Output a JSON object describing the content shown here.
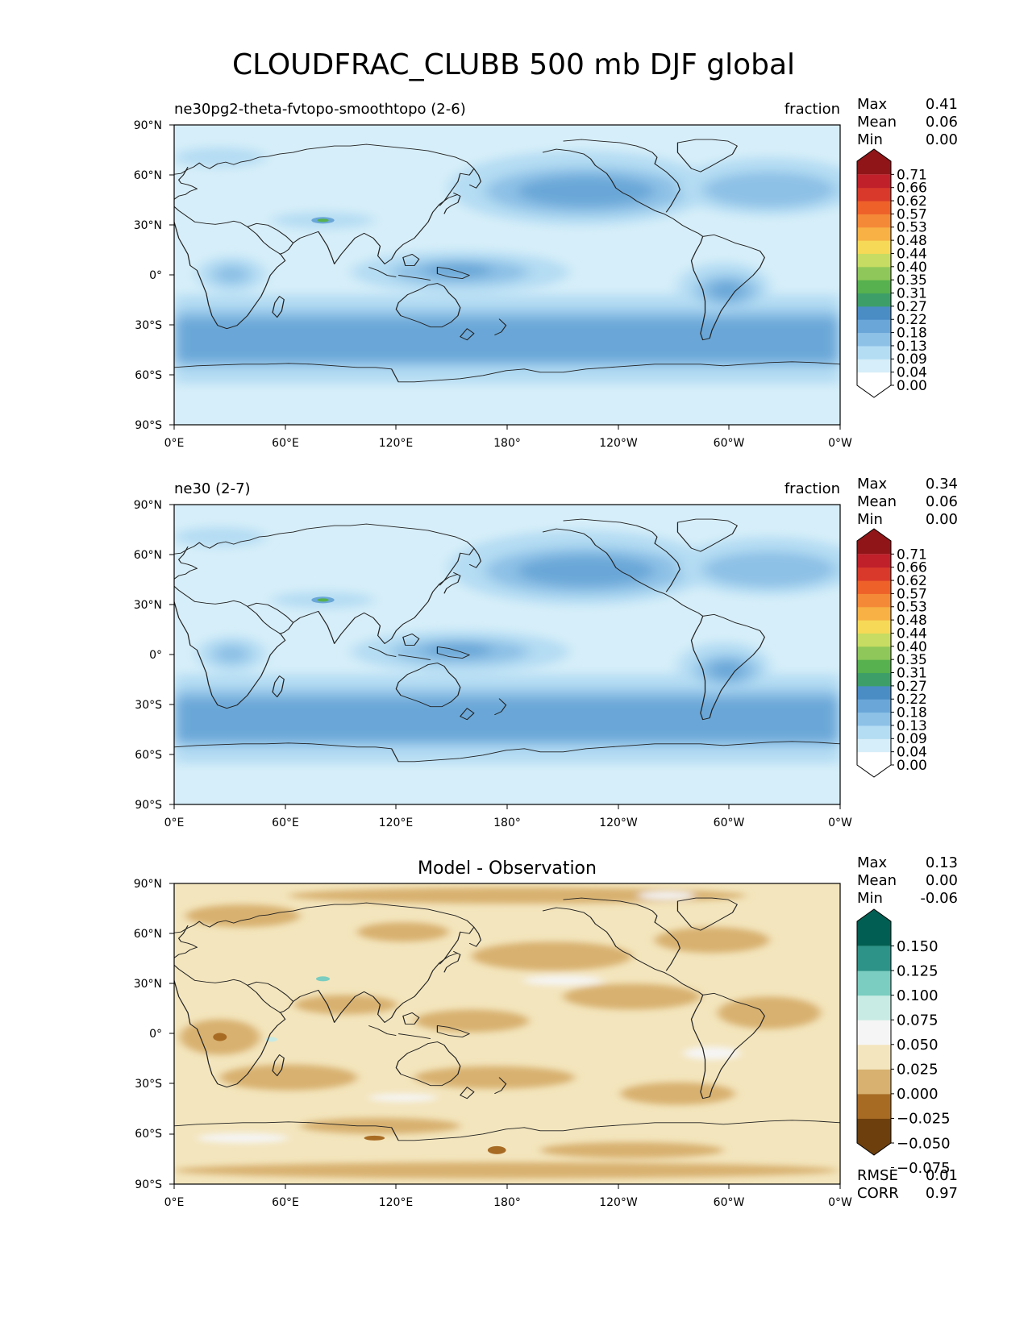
{
  "title": "CLOUDFRAC_CLUBB 500 mb DJF global",
  "lat_ticks": [
    "90°N",
    "60°N",
    "30°N",
    "0°",
    "30°S",
    "60°S",
    "90°S"
  ],
  "lon_ticks": [
    "0°E",
    "60°E",
    "120°E",
    "180°",
    "120°W",
    "60°W",
    "0°W"
  ],
  "chart_data": [
    {
      "type": "heatmap",
      "left_title": "ne30pg2-theta-fvtopo-smoothtopo (2-6)",
      "right_title": "fraction",
      "stats": {
        "labels": [
          "Max",
          "Mean",
          "Min"
        ],
        "values": [
          "0.41",
          "0.06",
          "0.00"
        ]
      },
      "colorbar": {
        "ticks": [
          "0.71",
          "0.66",
          "0.62",
          "0.57",
          "0.53",
          "0.48",
          "0.44",
          "0.40",
          "0.35",
          "0.31",
          "0.27",
          "0.22",
          "0.18",
          "0.13",
          "0.09",
          "0.04",
          "0.00"
        ],
        "colors": [
          "#ffffff",
          "#d6eef9",
          "#b4dcf3",
          "#8ec1e6",
          "#6aa7d8",
          "#4a8dc5",
          "#3d9e68",
          "#56b14e",
          "#8fc75a",
          "#c7dc62",
          "#f6d957",
          "#f7b144",
          "#f48a38",
          "#ee6129",
          "#d9392a",
          "#c0202a",
          "#8f1518"
        ]
      },
      "xlim": [
        0,
        360
      ],
      "ylim": [
        -90,
        90
      ]
    },
    {
      "type": "heatmap",
      "left_title": "ne30 (2-7)",
      "right_title": "fraction",
      "stats": {
        "labels": [
          "Max",
          "Mean",
          "Min"
        ],
        "values": [
          "0.34",
          "0.06",
          "0.00"
        ]
      },
      "colorbar": {
        "ticks": [
          "0.71",
          "0.66",
          "0.62",
          "0.57",
          "0.53",
          "0.48",
          "0.44",
          "0.40",
          "0.35",
          "0.31",
          "0.27",
          "0.22",
          "0.18",
          "0.13",
          "0.09",
          "0.04",
          "0.00"
        ],
        "colors": [
          "#ffffff",
          "#d6eef9",
          "#b4dcf3",
          "#8ec1e6",
          "#6aa7d8",
          "#4a8dc5",
          "#3d9e68",
          "#56b14e",
          "#8fc75a",
          "#c7dc62",
          "#f6d957",
          "#f7b144",
          "#f48a38",
          "#ee6129",
          "#d9392a",
          "#c0202a",
          "#8f1518"
        ]
      },
      "xlim": [
        0,
        360
      ],
      "ylim": [
        -90,
        90
      ]
    },
    {
      "type": "heatmap",
      "center_title": "Model - Observation",
      "stats": {
        "labels": [
          "Max",
          "Mean",
          "Min"
        ],
        "values": [
          "0.13",
          "0.00",
          "-0.06"
        ]
      },
      "colorbar": {
        "ticks": [
          "0.150",
          "0.125",
          "0.100",
          "0.075",
          "0.050",
          "0.025",
          "0.000",
          "−0.025",
          "−0.050",
          "−0.075"
        ],
        "colors": [
          "#6d3f0c",
          "#a86b24",
          "#d8b170",
          "#f3e5bd",
          "#f5f5f5",
          "#c8ebe3",
          "#7acdc0",
          "#2d9287",
          "#005f52"
        ]
      },
      "metrics": {
        "labels": [
          "RMSE",
          "CORR"
        ],
        "values": [
          "0.01",
          "0.97"
        ]
      },
      "xlim": [
        0,
        360
      ],
      "ylim": [
        -90,
        90
      ]
    }
  ]
}
